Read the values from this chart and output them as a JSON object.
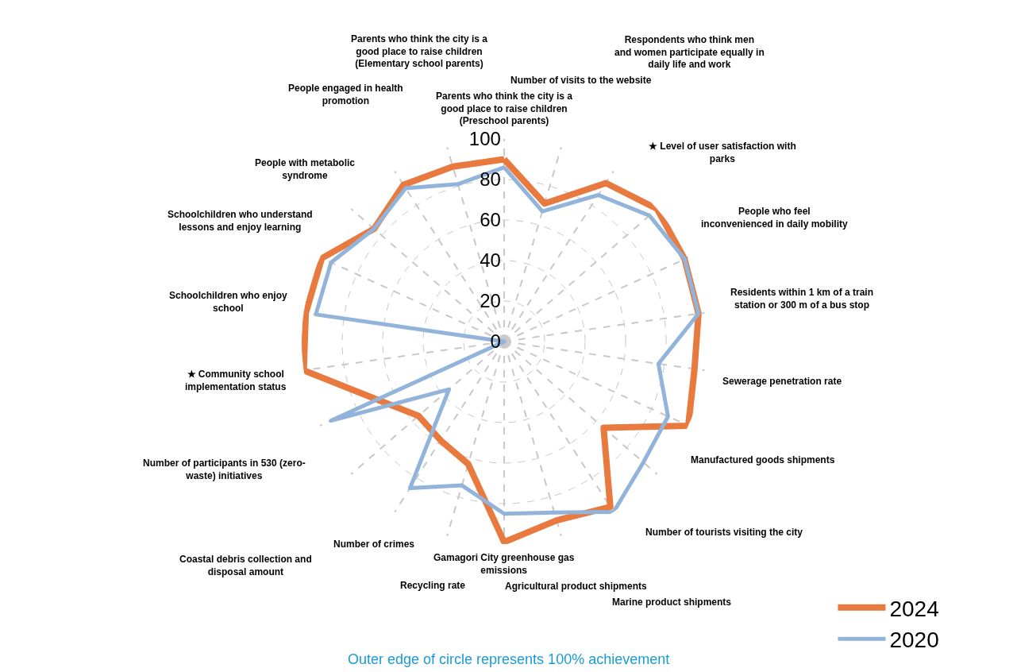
{
  "chart_data": {
    "type": "radar",
    "categories": [
      "Parents who think the city is a\ngood place to raise children\n(Preschool parents)",
      "Number of visits to the website",
      "Respondents who think men\nand women participate equally in\ndaily life and work",
      "★ Level of user satisfaction with\nparks",
      "People who feel\ninconvenienced in daily mobility",
      "Residents within 1 km of a train\nstation or 300 m of a bus stop",
      "Sewerage penetration rate",
      "Manufactured goods shipments",
      "Number of tourists visiting the city",
      "Marine product shipments",
      "Agricultural product shipments",
      "Gamagori City greenhouse gas\nemissions",
      "Recycling rate",
      "Number of crimes",
      "Coastal debris collection and\ndisposal amount",
      "Number of participants in 530 (zero-\nwaste) initiatives",
      "★ Community school\nimplementation status",
      "Schoolchildren who enjoy\nschool",
      "Schoolchildren who understand\nlessons and enjoy learning",
      "People with metabolic\nsyndrome",
      "People engaged in health\npromotion",
      "Parents who think the city is a\ngood place to raise children\n(Elementary school parents)"
    ],
    "series": [
      {
        "name": "2024",
        "color": "#e8793f",
        "values": [
          90,
          71,
          93,
          100,
          98,
          97,
          95,
          100,
          65,
          97,
          92,
          99,
          63,
          58,
          56,
          69,
          100,
          99,
          99,
          85,
          92,
          90
        ]
      },
      {
        "name": "2020",
        "color": "#92b4da",
        "values": [
          86,
          67,
          86,
          95,
          98,
          97,
          77,
          89,
          91,
          100,
          88,
          85,
          74,
          86,
          36,
          94,
          0,
          94,
          94,
          85,
          90,
          81
        ]
      }
    ],
    "ylim": [
      0,
      100
    ],
    "yticks": [
      0,
      20,
      40,
      60,
      80,
      100
    ],
    "grid": true,
    "legend": "bottom right",
    "line_style": "solid",
    "marker": "none",
    "annotations": [
      "Outer edge of circle represents 100% achievement"
    ]
  }
}
